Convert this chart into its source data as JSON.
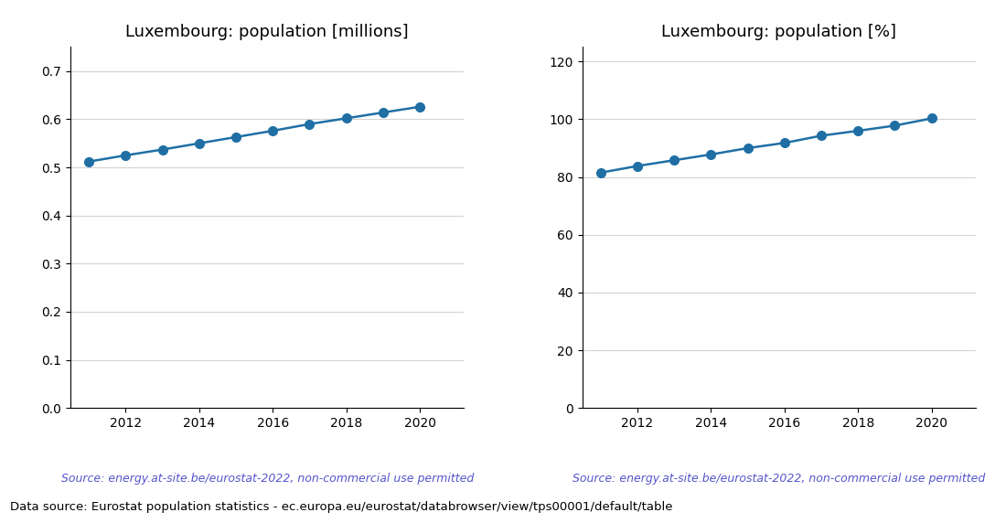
{
  "years": [
    2011,
    2012,
    2013,
    2014,
    2015,
    2016,
    2017,
    2018,
    2019,
    2020
  ],
  "population_millions": [
    0.512,
    0.525,
    0.537,
    0.55,
    0.563,
    0.576,
    0.59,
    0.602,
    0.614,
    0.626
  ],
  "population_percent": [
    81.5,
    83.8,
    85.8,
    87.8,
    90.0,
    91.8,
    94.3,
    96.0,
    97.8,
    100.3
  ],
  "title_millions": "Luxembourg: population [millions]",
  "title_percent": "Luxembourg: population [%]",
  "source_text": "Source: energy.at-site.be/eurostat-2022, non-commercial use permitted",
  "footer_text": "Data source: Eurostat population statistics - ec.europa.eu/eurostat/databrowser/view/tps00001/default/table",
  "line_color": "#1f6fa5",
  "source_color": "#5555cc",
  "footer_color": "#000000",
  "ylim_millions": [
    0.0,
    0.75
  ],
  "yticks_millions": [
    0.0,
    0.1,
    0.2,
    0.3,
    0.4,
    0.5,
    0.6,
    0.7
  ],
  "ylim_percent": [
    0,
    125
  ],
  "yticks_percent": [
    0,
    20,
    40,
    60,
    80,
    100,
    120
  ],
  "xlim": [
    2010.5,
    2021.2
  ],
  "xticks_display": [
    2012,
    2014,
    2016,
    2018,
    2020
  ],
  "marker_size": 7,
  "line_width": 1.8,
  "background_color": "#ffffff"
}
